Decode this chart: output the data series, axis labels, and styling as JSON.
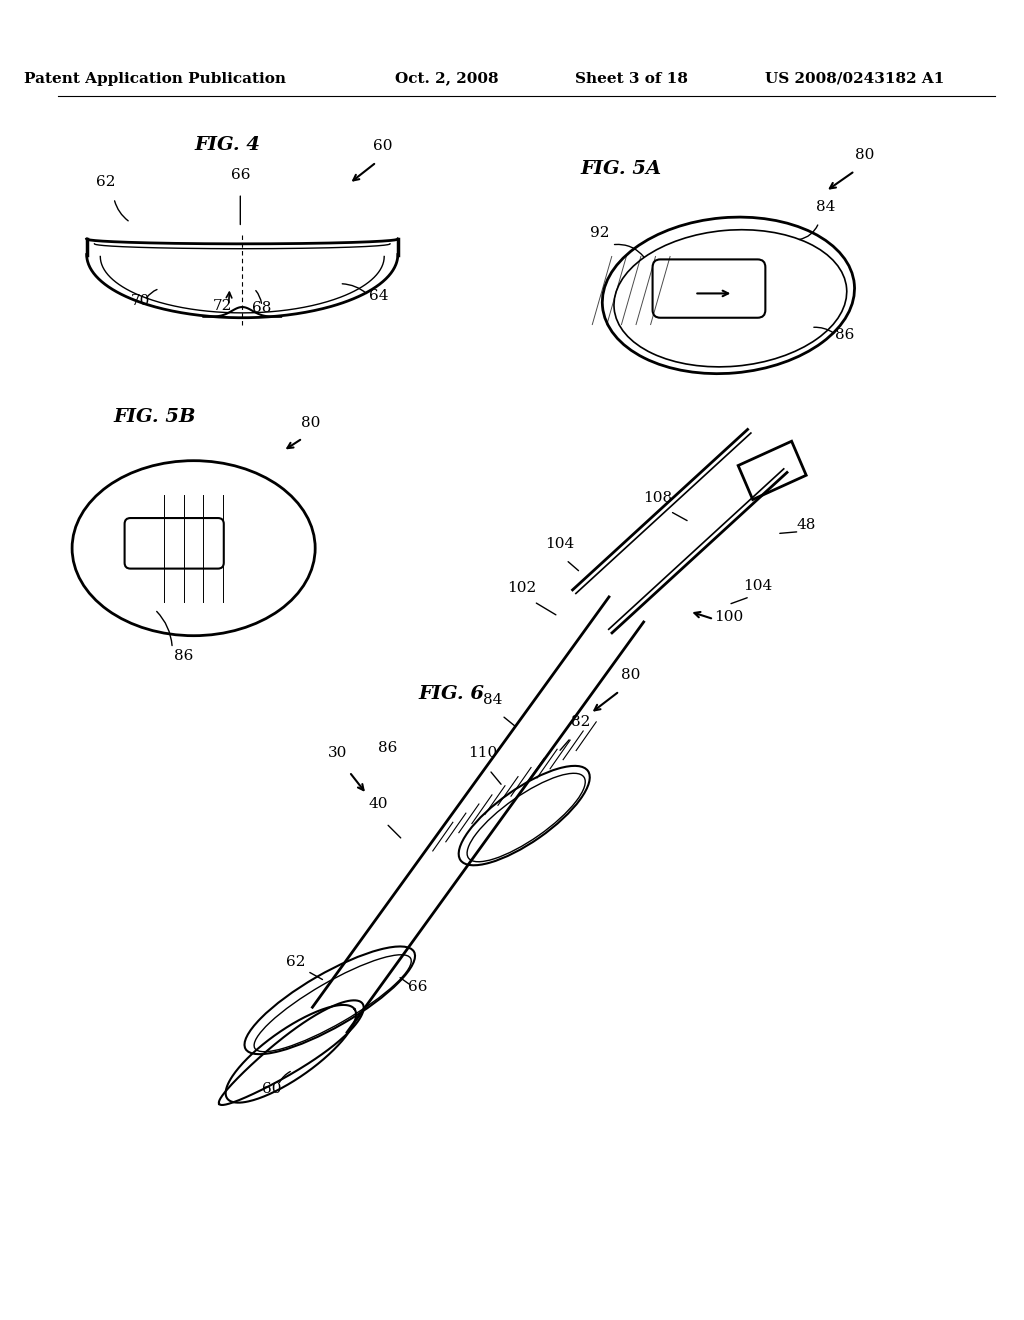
{
  "background_color": "#ffffff",
  "header_text": "Patent Application Publication",
  "header_date": "Oct. 2, 2008",
  "header_sheet": "Sheet 3 of 18",
  "header_patent": "US 2008/0243182 A1",
  "fig4_label": "FIG. 4",
  "fig5a_label": "FIG. 5A",
  "fig5b_label": "FIG. 5B",
  "fig6_label": "FIG. 6",
  "text_color": "#000000",
  "line_color": "#000000",
  "line_width": 1.5,
  "fig4_ref_numbers": [
    "60",
    "62",
    "64",
    "66",
    "68",
    "70",
    "72"
  ],
  "fig5a_ref_numbers": [
    "80",
    "84",
    "86",
    "92"
  ],
  "fig5b_ref_numbers": [
    "80",
    "86"
  ],
  "fig6_ref_numbers": [
    "30",
    "40",
    "48",
    "60",
    "62",
    "66",
    "80",
    "82",
    "84",
    "86",
    "100",
    "102",
    "104",
    "108",
    "110"
  ]
}
